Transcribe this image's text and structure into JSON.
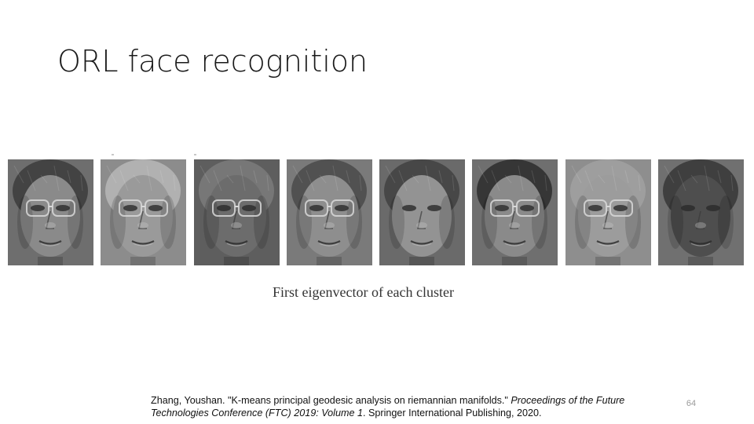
{
  "slide": {
    "title": "ORL face recognition",
    "caption": "First eigenvector of each cluster",
    "citation": {
      "authors_title": "Zhang, Youshan. \"K-means principal geodesic analysis on riemannian manifolds.\" ",
      "venue": "Proceedings of the Future Technologies Conference (FTC) 2019: Volume 1",
      "publisher": ". Springer International Publishing, 2020."
    },
    "page_number": "64"
  },
  "faces": [
    {
      "name": "eigenface-cluster-1",
      "tone": "#6e6e6e",
      "hair": "#3e3e3e",
      "skin": "#8a8a8a",
      "glasses": true
    },
    {
      "name": "eigenface-cluster-2",
      "tone": "#8c8c8c",
      "hair": "#b5b5b5",
      "skin": "#9a9a9a",
      "glasses": true
    },
    {
      "name": "eigenface-cluster-3",
      "tone": "#5e5e5e",
      "hair": "#7a7a7a",
      "skin": "#6c6c6c",
      "glasses": true
    },
    {
      "name": "eigenface-cluster-4",
      "tone": "#7a7a7a",
      "hair": "#4c4c4c",
      "skin": "#8e8e8e",
      "glasses": true
    },
    {
      "name": "eigenface-cluster-5",
      "tone": "#6a6a6a",
      "hair": "#444444",
      "skin": "#939393",
      "glasses": false
    },
    {
      "name": "eigenface-cluster-6",
      "tone": "#6f6f6f",
      "hair": "#303030",
      "skin": "#8a8a8a",
      "glasses": true
    },
    {
      "name": "eigenface-cluster-7",
      "tone": "#8e8e8e",
      "hair": "#a0a0a0",
      "skin": "#9c9c9c",
      "glasses": true
    },
    {
      "name": "eigenface-cluster-8",
      "tone": "#707070",
      "hair": "#3a3a3a",
      "skin": "#4e4e4e",
      "glasses": false
    }
  ]
}
